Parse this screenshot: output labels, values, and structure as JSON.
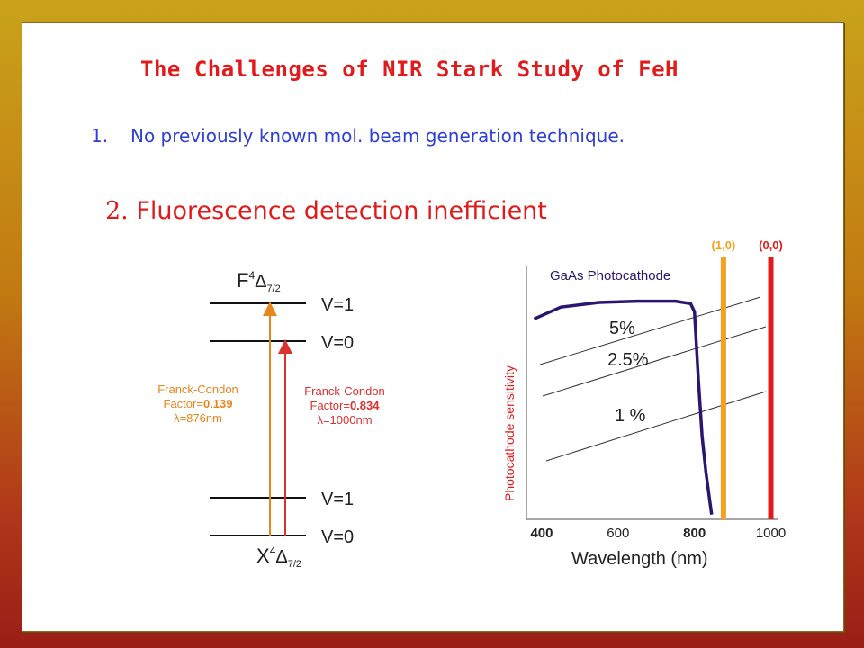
{
  "slide": {
    "title": "The Challenges of NIR Stark Study of FeH",
    "items": [
      {
        "number": "1.",
        "text": "No previously known  mol. beam generation technique."
      },
      {
        "number": "2.",
        "text": " Fluorescence detection inefficient"
      }
    ]
  },
  "energy_diagram": {
    "upper_state": {
      "letter": "F",
      "sup": "4",
      "delta": "Δ",
      "sub": "7/2"
    },
    "lower_state": {
      "letter": "X",
      "sup": "4",
      "delta": "Δ",
      "sub": "7/2"
    },
    "levels": [
      "V=1",
      "V=0",
      "V=1",
      "V=0"
    ],
    "transition_orange": {
      "line1": "Franck-Condon",
      "line2_prefix": "Factor=",
      "line2_value": "0.139",
      "line3": "λ=876nm",
      "color": "#e8861e"
    },
    "transition_red": {
      "line1": "Franck-Condon",
      "line2_prefix": "Factor=",
      "line2_value": "0.834",
      "line3": "λ=1000nm",
      "color": "#d93030"
    }
  },
  "chart_data": {
    "type": "line",
    "title": "GaAs Photocathode",
    "xlabel": "Wavelength (nm)",
    "ylabel": "Photocathode sensitivity",
    "x_ticks": [
      "400",
      "600",
      "800",
      "1000"
    ],
    "bold_ticks": [
      "400",
      "800"
    ],
    "xlim": [
      360,
      1020
    ],
    "efficiency_lines": [
      "5%",
      "2.5%",
      "1 %"
    ],
    "curve": {
      "name": "GaAs Photocathode",
      "color": "#2a1670",
      "x": [
        380,
        450,
        550,
        650,
        750,
        790,
        800,
        810,
        820,
        830,
        840,
        845
      ],
      "y": [
        0.85,
        0.9,
        0.92,
        0.925,
        0.925,
        0.915,
        0.88,
        0.6,
        0.35,
        0.2,
        0.08,
        0.02
      ]
    },
    "markers": [
      {
        "label": "(1,0)",
        "x": 876,
        "color": "#f5a11f"
      },
      {
        "label": "(0,0)",
        "x": 1000,
        "color": "#e21a1a"
      }
    ]
  },
  "colors": {
    "title": "#e11b1b",
    "list_item_1": "#2e3fd6",
    "list_item_2": "#e11b1b"
  }
}
